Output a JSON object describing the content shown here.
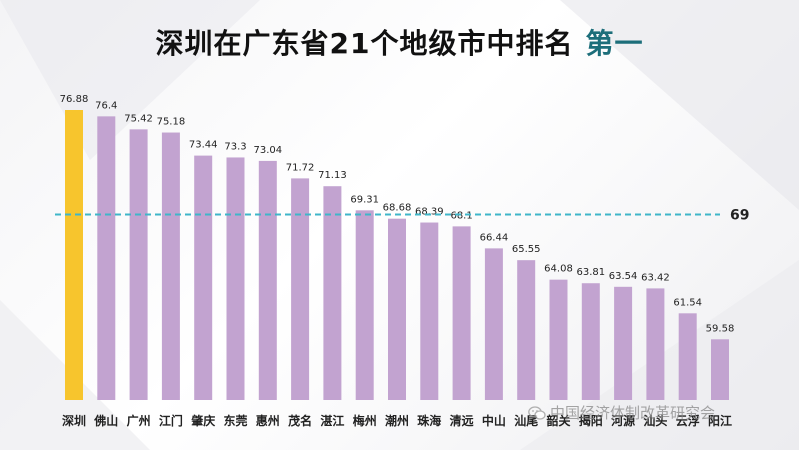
{
  "page": {
    "title": "深圳在广东省21个地级市中排名",
    "title_highlight": "第一",
    "watermark": "中国经济体制改革研究会",
    "watermark_icon": "wechat-icon"
  },
  "colors": {
    "highlight_bar": "#f7c52d",
    "bar": "#c2a3d0",
    "reference_line": "#3fb6c9",
    "title_highlight": "#1c6e7a"
  },
  "chart_data": {
    "type": "bar",
    "title": "深圳在广东省21个地级市中排名 第一",
    "categories": [
      "深圳",
      "佛山",
      "广州",
      "江门",
      "肇庆",
      "东莞",
      "惠州",
      "茂名",
      "湛江",
      "梅州",
      "潮州",
      "珠海",
      "清远",
      "中山",
      "汕尾",
      "韶关",
      "揭阳",
      "河源",
      "汕头",
      "云浮",
      "阳江"
    ],
    "values": [
      76.88,
      76.4,
      75.42,
      75.18,
      73.44,
      73.3,
      73.04,
      71.72,
      71.13,
      69.31,
      68.68,
      68.39,
      68.1,
      66.44,
      65.55,
      64.08,
      63.81,
      63.54,
      63.42,
      61.54,
      59.58
    ],
    "value_labels": [
      "76.88",
      "76.4",
      "75.42",
      "75.18",
      "73.44",
      "73.3",
      "73.04",
      "71.72",
      "71.13",
      "69.31",
      "68.68",
      "68.39",
      "68.1",
      "66.44",
      "65.55",
      "64.08",
      "63.81",
      "63.54",
      "63.42",
      "61.54",
      "59.58"
    ],
    "highlight_index": 0,
    "reference_line": {
      "value": 69,
      "label": "69",
      "style": "dashed"
    },
    "ylim": [
      55,
      78
    ],
    "grid": false,
    "legend": "none"
  }
}
